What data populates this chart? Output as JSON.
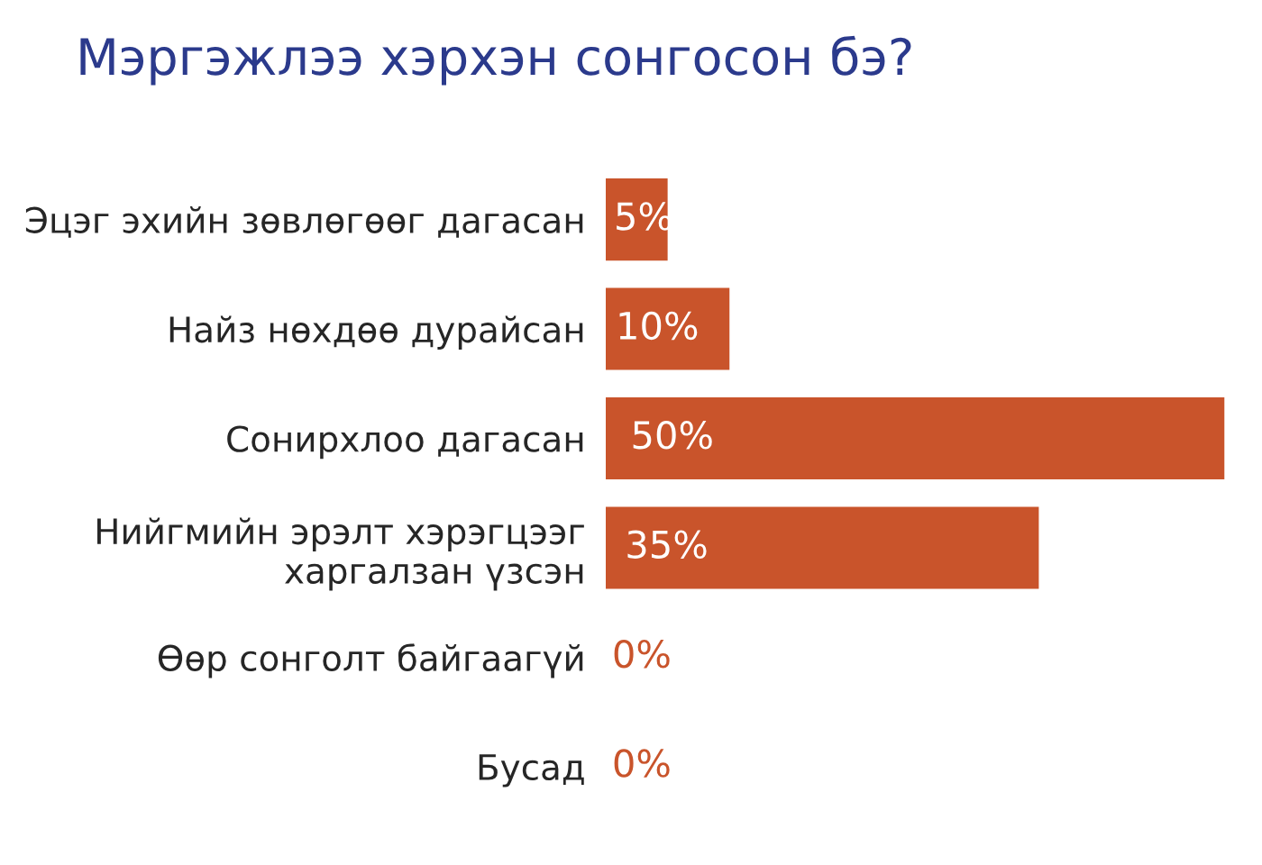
{
  "chart_data": {
    "type": "bar",
    "orientation": "horizontal",
    "title": "Мэргэжлээ хэрхэн сонгосон бэ?",
    "categories": [
      "Эцэг эхийн зөвлөгөөг дагасан",
      "Найз нөхдөө дурайсан",
      "Сонирхлоо дагасан",
      "Нийгмийн эрэлт хэрэгцээг\nхаргалзан үзсэн",
      "Өөр сонголт байгаагүй",
      "Бусад"
    ],
    "values": [
      5,
      10,
      50,
      35,
      0,
      0
    ],
    "value_labels": [
      "5%",
      "10%",
      "50%",
      "35%",
      "0%",
      "0%"
    ],
    "color": "#c9542b",
    "grid": false,
    "legend": false
  }
}
